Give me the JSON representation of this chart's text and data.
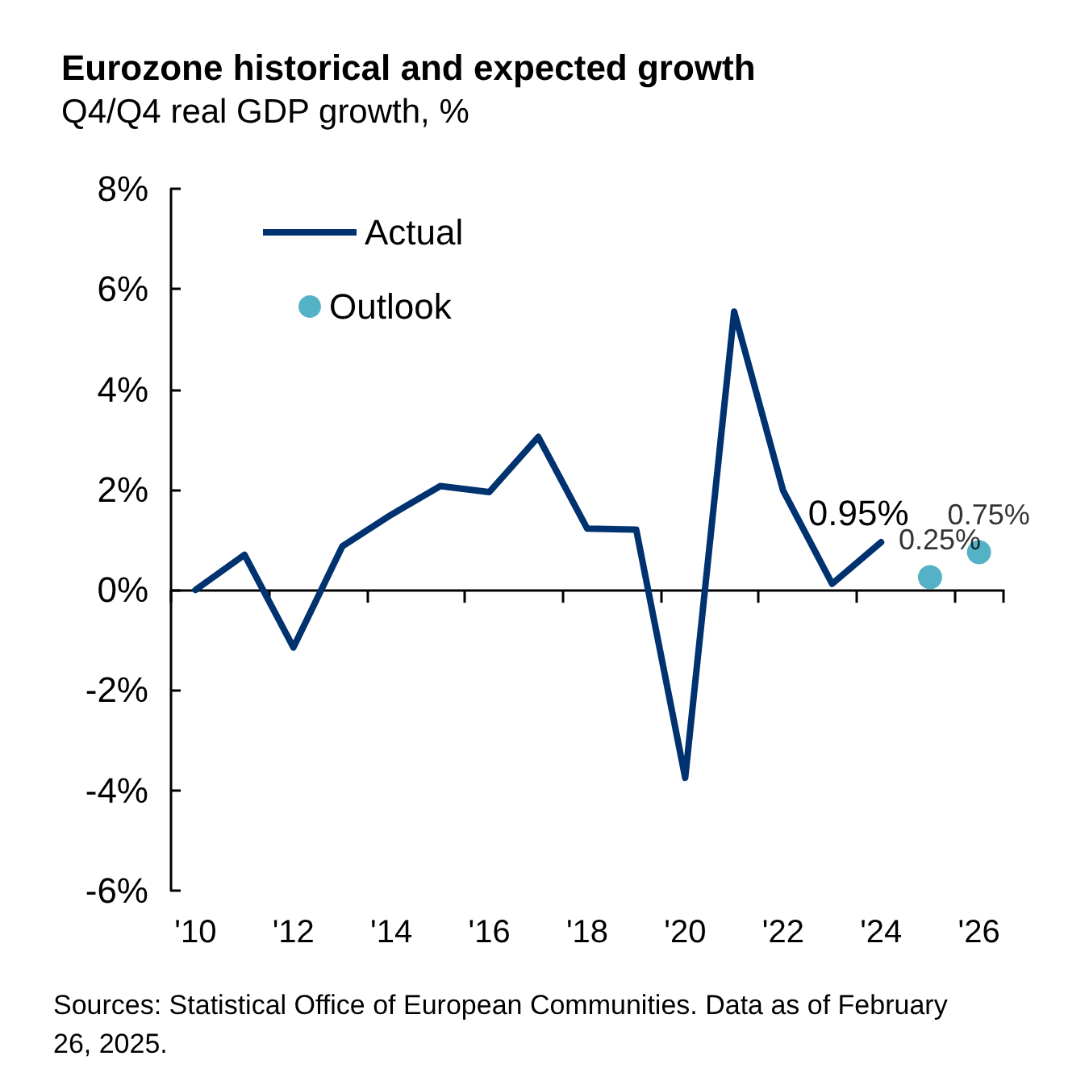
{
  "chart_data": {
    "type": "line",
    "title": "Eurozone historical and expected growth",
    "subtitle": "Q4/Q4 real GDP growth, %",
    "categories": [
      "'10",
      null,
      "'12",
      null,
      "'14",
      null,
      "'16",
      null,
      "'18",
      null,
      "'20",
      null,
      "'22",
      null,
      "'24",
      null,
      "'26"
    ],
    "series": [
      {
        "name": "Actual",
        "marker": "none",
        "color": "#003270",
        "values": [
          0,
          0.7,
          -1.15,
          0.87,
          1.5,
          2.07,
          1.95,
          3.05,
          1.22,
          1.2,
          -3.75,
          5.55,
          1.98,
          0.12,
          0.95,
          null,
          null
        ],
        "value_labels": [
          null,
          null,
          null,
          null,
          null,
          null,
          null,
          null,
          null,
          null,
          null,
          null,
          null,
          null,
          "0.95%",
          null,
          null
        ]
      },
      {
        "name": "Outlook",
        "type": "scatter",
        "marker": "circle",
        "color": "#2a9fb8",
        "values": [
          null,
          null,
          null,
          null,
          null,
          null,
          null,
          null,
          null,
          null,
          null,
          null,
          null,
          null,
          null,
          0.25,
          0.75
        ],
        "value_labels": [
          null,
          null,
          null,
          null,
          null,
          null,
          null,
          null,
          null,
          null,
          null,
          null,
          null,
          null,
          null,
          "0.25%",
          "0.75%"
        ]
      }
    ],
    "ylim": [
      -6,
      8
    ],
    "yticks": [
      {
        "value": -6,
        "label": "-6%"
      },
      {
        "value": -4,
        "label": "-4%"
      },
      {
        "value": -2,
        "label": "-2%"
      },
      {
        "value": 0,
        "label": "0%"
      },
      {
        "value": 2,
        "label": "2%"
      },
      {
        "value": 4,
        "label": "4%"
      },
      {
        "value": 6,
        "label": "6%"
      },
      {
        "value": 8,
        "label": "8%"
      }
    ],
    "legend": "top left",
    "line_style": "solid",
    "annotations": [
      "Sources: Statistical Office of European Communities. Data as of February 26, 2025."
    ]
  }
}
